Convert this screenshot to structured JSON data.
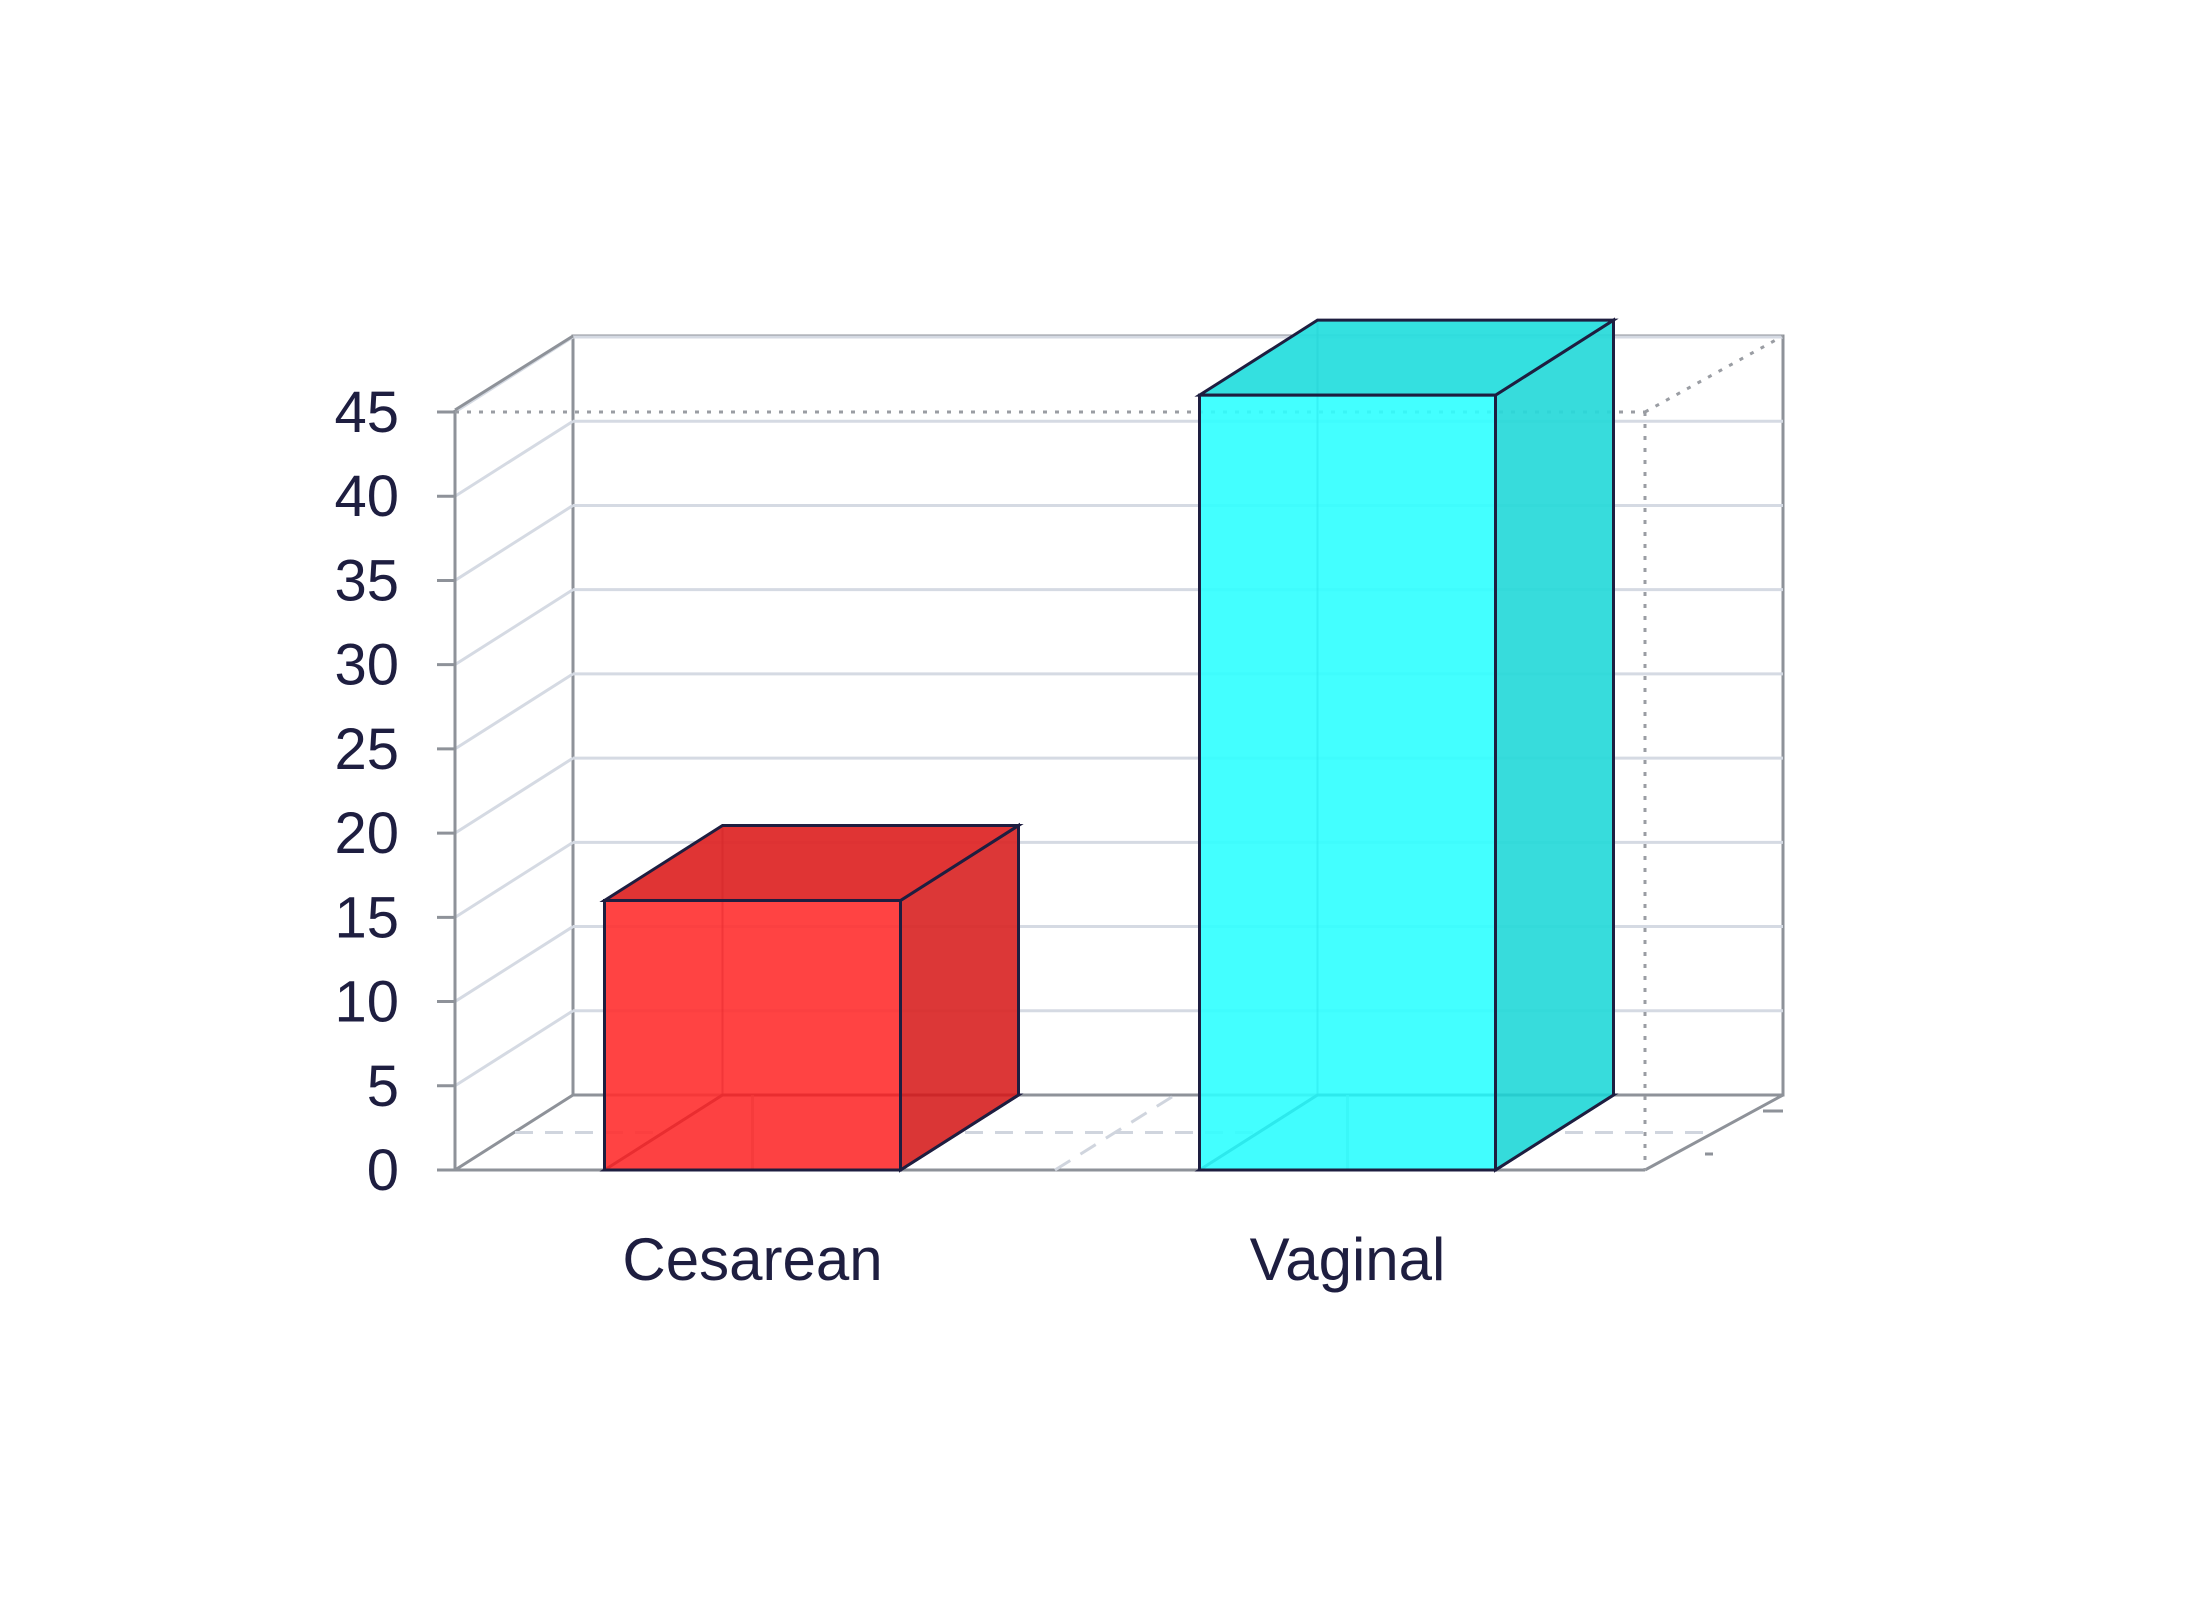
{
  "chart_data": {
    "type": "bar",
    "style": "3d",
    "categories": [
      "Cesarean",
      "Vaginal"
    ],
    "values": [
      16,
      46
    ],
    "colors": [
      "#FF2F2F",
      "#2FFFFF"
    ],
    "ylim": [
      0,
      45
    ],
    "yticks": [
      "0",
      "5",
      "10",
      "15",
      "20",
      "25",
      "30",
      "35",
      "40",
      "45"
    ],
    "grid": true,
    "legend": "none",
    "title": "",
    "xlabel": "",
    "ylabel": ""
  }
}
